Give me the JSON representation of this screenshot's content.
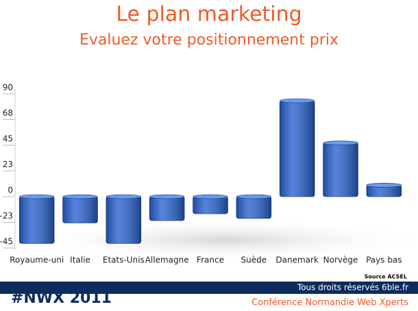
{
  "chart_data": {
    "type": "bar",
    "title": "Le plan marketing",
    "subtitle": "Evaluez votre positionnement prix",
    "categories": [
      "Royaume-uni",
      "Italie",
      "Etats-Unis",
      "Allemagne",
      "France",
      "Suède",
      "Danemark",
      "Norvège",
      "Pays bas"
    ],
    "values": [
      -41,
      -23,
      -41,
      -21,
      -15,
      -19,
      84,
      47,
      10
    ],
    "color": "#2a64d0",
    "ylim": [
      -45,
      90
    ],
    "yticks": [
      {
        "value": -45,
        "label": "-45"
      },
      {
        "value": -22.5,
        "label": "-23"
      },
      0,
      {
        "value": 22.5,
        "label": "23"
      },
      45,
      {
        "value": 67.5,
        "label": "68"
      },
      90
    ],
    "grid": false,
    "source": "Source ACSEL"
  },
  "footer": {
    "rights": "Tous droits réservés 6ble.fr",
    "logo": "#NWX 2011",
    "conference": "Conférence Normandie Web Xperts"
  }
}
